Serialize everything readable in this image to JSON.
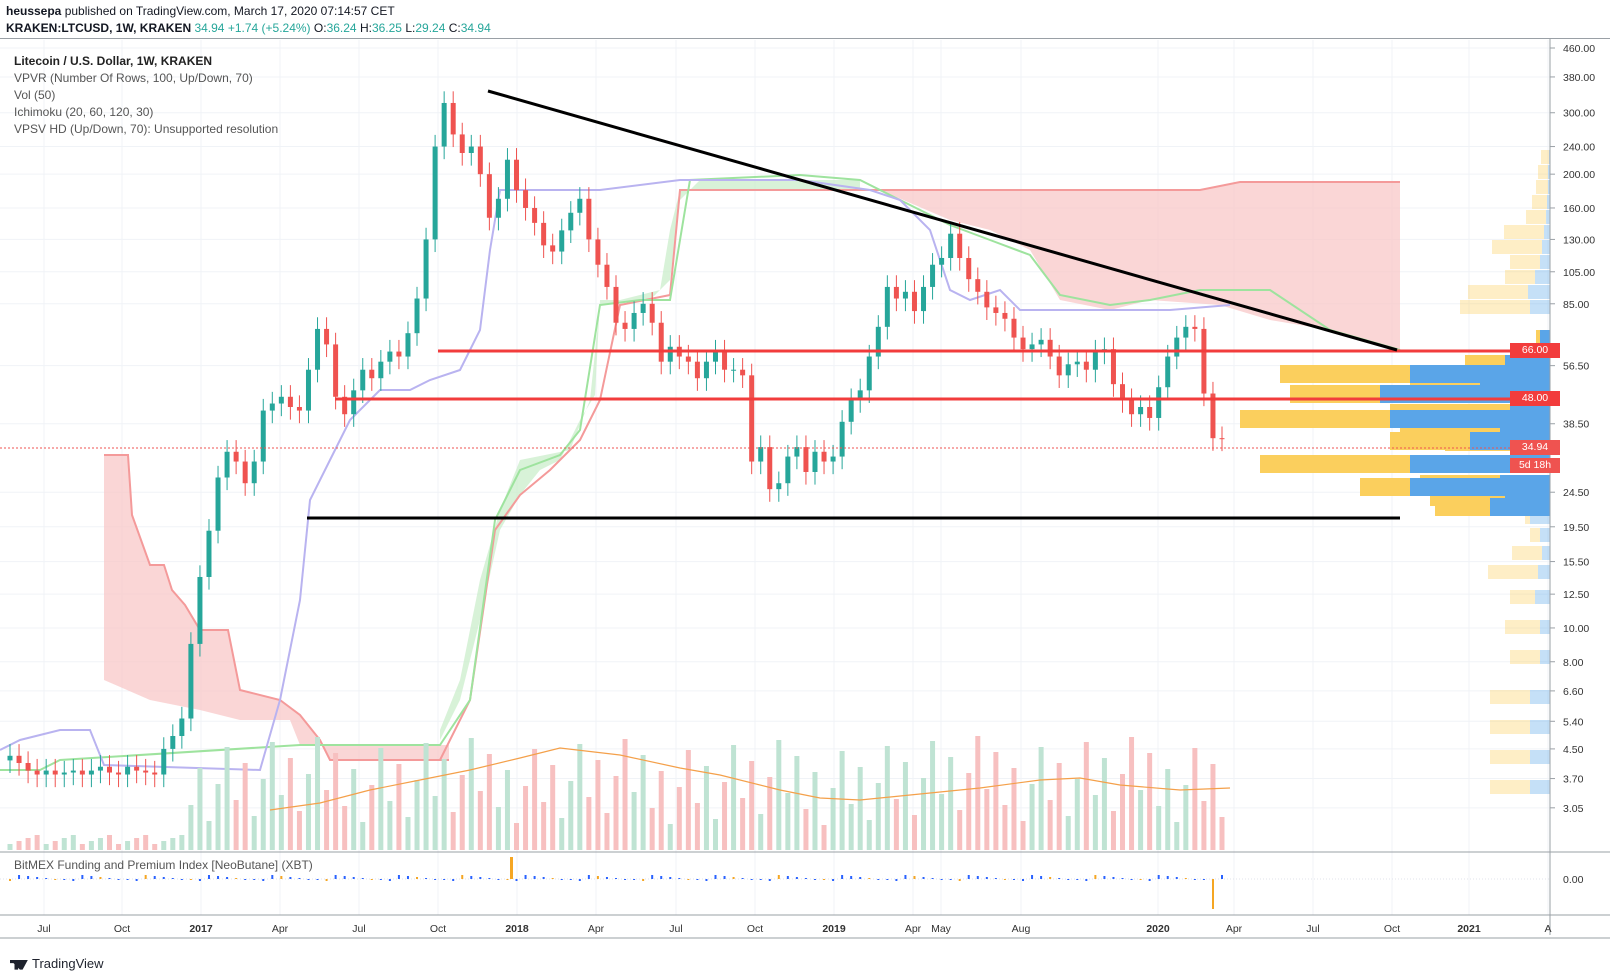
{
  "header": {
    "author": "heussepa",
    "published": "published on TradingView.com, March 17, 2020 07:14:57 CET",
    "symbol": "KRAKEN:LTCUSD, 1W, KRAKEN",
    "last": "34.94",
    "change": "+1.74 (+5.24%)",
    "o_label": "O:",
    "o": "36.24",
    "h_label": "H:",
    "h": "36.25",
    "l_label": "L:",
    "l": "29.24",
    "c_label": "C:",
    "c": "34.94"
  },
  "legend": {
    "title": "Litecoin / U.S. Dollar, 1W, KRAKEN",
    "vpvr": "VPVR (Number Of Rows, 100, Up/Down, 70)",
    "vol": "Vol (50)",
    "ichimoku": "Ichimoku (20, 60, 120, 30)",
    "vpsv": "VPSV HD (Up/Down, 70): Unsupported resolution"
  },
  "price_axis": [
    "460.00",
    "380.00",
    "300.00",
    "240.00",
    "200.00",
    "160.00",
    "130.00",
    "105.00",
    "85.00",
    "56.50",
    "38.50",
    "24.50",
    "19.50",
    "15.50",
    "12.50",
    "10.00",
    "8.00",
    "6.60",
    "5.40",
    "4.50",
    "3.70",
    "3.05"
  ],
  "price_badges": {
    "level_66": "66.00",
    "level_48": "48.00",
    "current": "34.94",
    "countdown": "5d 18h"
  },
  "time_axis": [
    "Jul",
    "Oct",
    "2017",
    "Apr",
    "Jul",
    "Oct",
    "2018",
    "Apr",
    "Jul",
    "Oct",
    "2019",
    "Apr",
    "May",
    "Aug",
    "2020",
    "Apr",
    "Jul",
    "Oct",
    "2021",
    "A"
  ],
  "indicator": {
    "title": "BitMEX Funding and Premium Index [NeoButane] (XBT)",
    "zero_label": "0.00"
  },
  "footer": {
    "brand": "TradingView"
  },
  "colors": {
    "up": "#26a69a",
    "down": "#ef5350",
    "support": "#f23c3c",
    "vp_up": "#5aa5e8",
    "vp_down": "#fbcf5d",
    "cloud": "#f8c4c4"
  },
  "chart_data": {
    "type": "candlestick",
    "title": "Litecoin / U.S. Dollar, 1W, KRAKEN",
    "scale": "log",
    "ylim": [
      2.6,
      460
    ],
    "horizontal_levels": [
      66,
      48,
      21.5
    ],
    "trendline": {
      "from": [
        "2017-12",
        350
      ],
      "to": [
        "2020-09",
        70
      ]
    },
    "current_price": 34.94,
    "closes": [
      4.3,
      4.1,
      3.9,
      3.8,
      3.9,
      3.8,
      3.85,
      3.9,
      3.8,
      3.9,
      4.0,
      3.85,
      3.8,
      4.0,
      3.9,
      3.85,
      3.8,
      4.5,
      4.9,
      5.5,
      9,
      14,
      19,
      27,
      32,
      30,
      26,
      30,
      42,
      44,
      46,
      43,
      42,
      55,
      72,
      65,
      46,
      41,
      48,
      55,
      52,
      58,
      62,
      60,
      70,
      88,
      130,
      240,
      320,
      260,
      230,
      240,
      200,
      150,
      170,
      220,
      180,
      160,
      145,
      125,
      120,
      138,
      155,
      170,
      130,
      110,
      95,
      75,
      72,
      80,
      85,
      75,
      58,
      64,
      60,
      58,
      52,
      58,
      62,
      55,
      55,
      53,
      30,
      33,
      25,
      26,
      31,
      33,
      28,
      32,
      30,
      31,
      39,
      45,
      48,
      60,
      73,
      95,
      88,
      92,
      81,
      95,
      110,
      115,
      135,
      115,
      100,
      92,
      83,
      80,
      77,
      68,
      63,
      65,
      67,
      60,
      53,
      57,
      58,
      55,
      62,
      63,
      50,
      45,
      41,
      43,
      40,
      49,
      60,
      68,
      73,
      72,
      47,
      35,
      34.94
    ]
  }
}
